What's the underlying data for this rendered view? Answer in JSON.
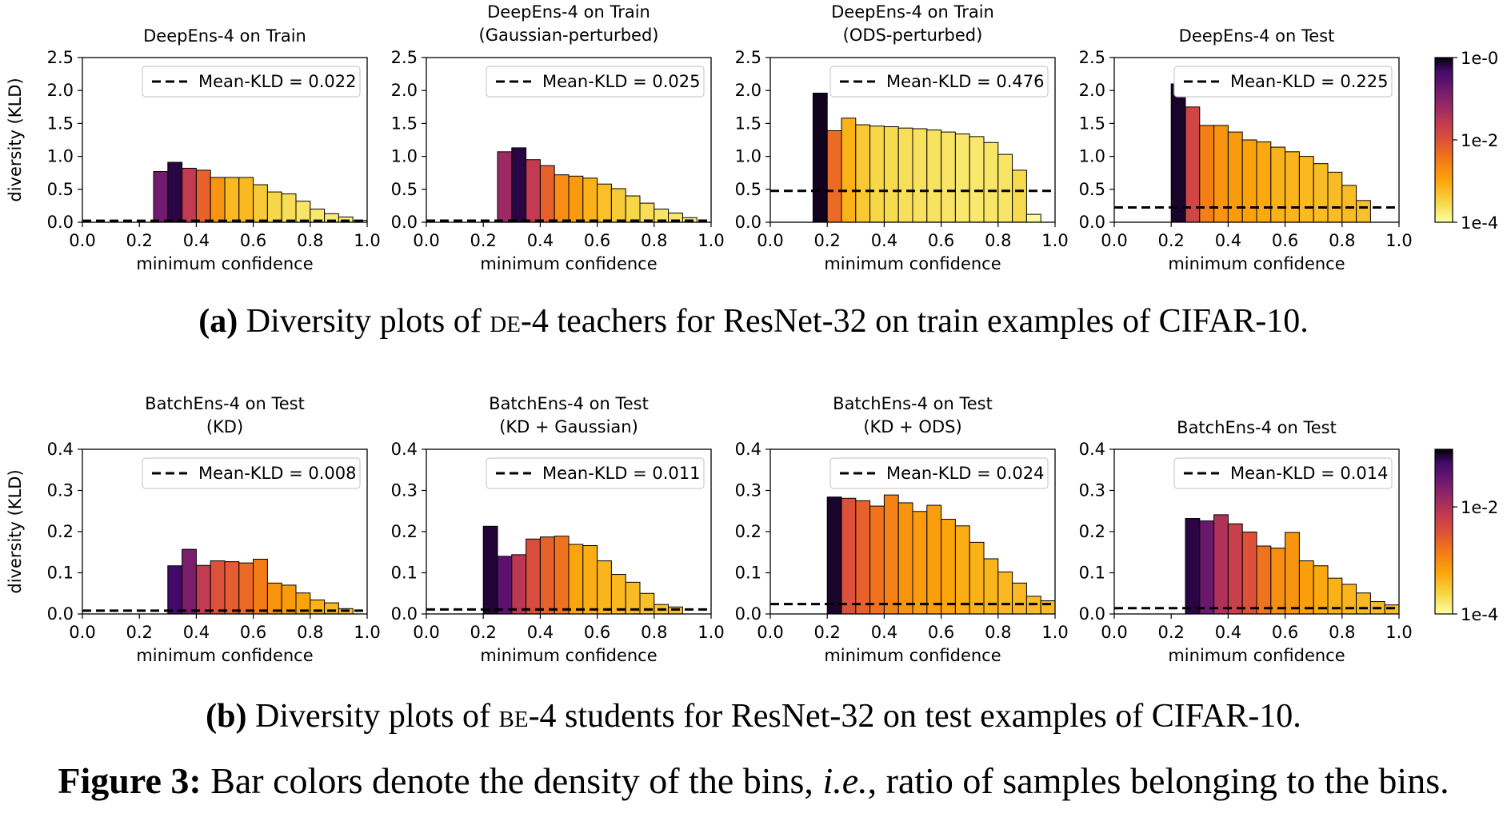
{
  "chart_data": [
    {
      "type": "bar",
      "row": 0,
      "col": 0,
      "title": "DeepEns-4 on Train",
      "xlabel": "minimum confidence",
      "ylabel": "diversity (KLD)",
      "xlim": [
        0.0,
        1.0
      ],
      "ylim": [
        0.0,
        2.5
      ],
      "xticks": [
        "0.0",
        "0.2",
        "0.4",
        "0.6",
        "0.8",
        "1.0"
      ],
      "yticks": [
        "0.0",
        "0.5",
        "1.0",
        "1.5",
        "2.0",
        "2.5"
      ],
      "bin_start": 0.25,
      "bin_width": 0.05,
      "values": [
        0.77,
        0.91,
        0.82,
        0.79,
        0.68,
        0.68,
        0.68,
        0.57,
        0.46,
        0.43,
        0.32,
        0.2,
        0.13,
        0.08,
        0.03
      ],
      "density": [
        0.8,
        0.95,
        0.6,
        0.45,
        0.3,
        0.2,
        0.2,
        0.15,
        0.12,
        0.1,
        0.08,
        0.07,
        0.06,
        0.05,
        0.04
      ],
      "mean_kld": 0.022,
      "legend": "Mean-KLD = 0.022"
    },
    {
      "type": "bar",
      "row": 0,
      "col": 1,
      "title": "DeepEns-4 on Train\n(Gaussian-perturbed)",
      "xlabel": "minimum confidence",
      "ylabel": "",
      "xlim": [
        0.0,
        1.0
      ],
      "ylim": [
        0.0,
        2.5
      ],
      "xticks": [
        "0.0",
        "0.2",
        "0.4",
        "0.6",
        "0.8",
        "1.0"
      ],
      "yticks": [
        "0.0",
        "0.5",
        "1.0",
        "1.5",
        "2.0",
        "2.5"
      ],
      "bin_start": 0.25,
      "bin_width": 0.05,
      "values": [
        1.07,
        1.13,
        0.95,
        0.86,
        0.72,
        0.7,
        0.67,
        0.58,
        0.51,
        0.4,
        0.29,
        0.2,
        0.14,
        0.07
      ],
      "density": [
        0.7,
        0.95,
        0.6,
        0.45,
        0.32,
        0.28,
        0.22,
        0.18,
        0.15,
        0.12,
        0.1,
        0.08,
        0.07,
        0.05
      ],
      "mean_kld": 0.025,
      "legend": "Mean-KLD = 0.025"
    },
    {
      "type": "bar",
      "row": 0,
      "col": 2,
      "title": "DeepEns-4 on Train\n(ODS-perturbed)",
      "xlabel": "minimum confidence",
      "ylabel": "",
      "xlim": [
        0.0,
        1.0
      ],
      "ylim": [
        0.0,
        2.5
      ],
      "xticks": [
        "0.0",
        "0.2",
        "0.4",
        "0.6",
        "0.8",
        "1.0"
      ],
      "yticks": [
        "0.0",
        "0.5",
        "1.0",
        "1.5",
        "2.0",
        "2.5"
      ],
      "bin_start": 0.15,
      "bin_width": 0.05,
      "values": [
        1.96,
        1.39,
        1.58,
        1.48,
        1.46,
        1.45,
        1.43,
        1.42,
        1.4,
        1.37,
        1.34,
        1.3,
        1.21,
        1.03,
        0.79,
        0.12
      ],
      "density": [
        0.98,
        0.42,
        0.22,
        0.16,
        0.12,
        0.11,
        0.095,
        0.09,
        0.085,
        0.08,
        0.07,
        0.07,
        0.075,
        0.08,
        0.11,
        0.01
      ],
      "mean_kld": 0.476,
      "legend": "Mean-KLD = 0.476"
    },
    {
      "type": "bar",
      "row": 0,
      "col": 3,
      "title": "DeepEns-4 on Test",
      "xlabel": "minimum confidence",
      "ylabel": "",
      "xlim": [
        0.0,
        1.0
      ],
      "ylim": [
        0.0,
        2.5
      ],
      "xticks": [
        "0.0",
        "0.2",
        "0.4",
        "0.6",
        "0.8",
        "1.0"
      ],
      "yticks": [
        "0.0",
        "0.5",
        "1.0",
        "1.5",
        "2.0",
        "2.5"
      ],
      "bin_start": 0.2,
      "bin_width": 0.05,
      "values": [
        2.1,
        1.75,
        1.47,
        1.47,
        1.37,
        1.25,
        1.22,
        1.14,
        1.07,
        1.0,
        0.89,
        0.76,
        0.56,
        0.33
      ],
      "density": [
        0.97,
        0.55,
        0.36,
        0.3,
        0.28,
        0.26,
        0.24,
        0.22,
        0.21,
        0.2,
        0.19,
        0.19,
        0.19,
        0.18
      ],
      "mean_kld": 0.225,
      "legend": "Mean-KLD = 0.225"
    },
    {
      "type": "bar",
      "row": 1,
      "col": 0,
      "title": "BatchEns-4 on Test\n(KD)",
      "xlabel": "minimum confidence",
      "ylabel": "diversity (KLD)",
      "xlim": [
        0.0,
        1.0
      ],
      "ylim": [
        0.0,
        0.4
      ],
      "xticks": [
        "0.0",
        "0.2",
        "0.4",
        "0.6",
        "0.8",
        "1.0"
      ],
      "yticks": [
        "0.0",
        "0.1",
        "0.2",
        "0.3",
        "0.4"
      ],
      "bin_start": 0.3,
      "bin_width": 0.05,
      "values": [
        0.117,
        0.157,
        0.118,
        0.129,
        0.127,
        0.124,
        0.133,
        0.075,
        0.07,
        0.051,
        0.034,
        0.027,
        0.013
      ],
      "density": [
        0.92,
        0.78,
        0.6,
        0.5,
        0.46,
        0.42,
        0.37,
        0.3,
        0.28,
        0.25,
        0.22,
        0.2,
        0.18
      ],
      "mean_kld": 0.008,
      "legend": "Mean-KLD = 0.008"
    },
    {
      "type": "bar",
      "row": 1,
      "col": 1,
      "title": "BatchEns-4 on Test\n(KD + Gaussian)",
      "xlabel": "minimum confidence",
      "ylabel": "",
      "xlim": [
        0.0,
        1.0
      ],
      "ylim": [
        0.0,
        0.4
      ],
      "xticks": [
        "0.0",
        "0.2",
        "0.4",
        "0.6",
        "0.8",
        "1.0"
      ],
      "yticks": [
        "0.0",
        "0.1",
        "0.2",
        "0.3",
        "0.4"
      ],
      "bin_start": 0.2,
      "bin_width": 0.05,
      "values": [
        0.213,
        0.14,
        0.144,
        0.182,
        0.187,
        0.189,
        0.169,
        0.166,
        0.129,
        0.096,
        0.077,
        0.05,
        0.023,
        0.017
      ],
      "density": [
        0.96,
        0.86,
        0.62,
        0.52,
        0.45,
        0.4,
        0.25,
        0.23,
        0.21,
        0.2,
        0.19,
        0.18,
        0.17,
        0.18
      ],
      "mean_kld": 0.011,
      "legend": "Mean-KLD = 0.011"
    },
    {
      "type": "bar",
      "row": 1,
      "col": 2,
      "title": "BatchEns-4 on Test\n(KD + ODS)",
      "xlabel": "minimum confidence",
      "ylabel": "",
      "xlim": [
        0.0,
        1.0
      ],
      "ylim": [
        0.0,
        0.4
      ],
      "xticks": [
        "0.0",
        "0.2",
        "0.4",
        "0.6",
        "0.8",
        "1.0"
      ],
      "yticks": [
        "0.0",
        "0.1",
        "0.2",
        "0.3",
        "0.4"
      ],
      "bin_start": 0.2,
      "bin_width": 0.05,
      "values": [
        0.284,
        0.281,
        0.275,
        0.262,
        0.289,
        0.27,
        0.249,
        0.264,
        0.23,
        0.214,
        0.174,
        0.134,
        0.102,
        0.075,
        0.043,
        0.032
      ],
      "density": [
        0.97,
        0.5,
        0.45,
        0.4,
        0.35,
        0.3,
        0.28,
        0.27,
        0.25,
        0.23,
        0.22,
        0.21,
        0.2,
        0.2,
        0.19,
        0.19
      ],
      "mean_kld": 0.024,
      "legend": "Mean-KLD = 0.024"
    },
    {
      "type": "bar",
      "row": 1,
      "col": 3,
      "title": "BatchEns-4 on Test",
      "xlabel": "minimum confidence",
      "ylabel": "",
      "xlim": [
        0.0,
        1.0
      ],
      "ylim": [
        0.0,
        0.4
      ],
      "xticks": [
        "0.0",
        "0.2",
        "0.4",
        "0.6",
        "0.8",
        "1.0"
      ],
      "yticks": [
        "0.0",
        "0.1",
        "0.2",
        "0.3",
        "0.4"
      ],
      "bin_start": 0.25,
      "bin_width": 0.05,
      "values": [
        0.232,
        0.226,
        0.241,
        0.219,
        0.199,
        0.165,
        0.16,
        0.198,
        0.129,
        0.117,
        0.087,
        0.072,
        0.051,
        0.03,
        0.022
      ],
      "density": [
        0.95,
        0.82,
        0.65,
        0.58,
        0.5,
        0.4,
        0.32,
        0.3,
        0.27,
        0.24,
        0.22,
        0.21,
        0.2,
        0.19,
        0.19
      ],
      "mean_kld": 0.014,
      "legend": "Mean-KLD = 0.014"
    }
  ],
  "colorbars": [
    {
      "row": 0,
      "ticks": [
        "1e-0",
        "1e-2",
        "1e-4"
      ]
    },
    {
      "row": 1,
      "ticks": [
        "1e-2",
        "1e-4"
      ]
    }
  ],
  "captions": {
    "a": {
      "label": "(a)",
      "pre": "Diversity plots of ",
      "sc": "de",
      "post": "-4 teachers for ResNet-32 on train examples of CIFAR-10."
    },
    "b": {
      "label": "(b)",
      "pre": "Diversity plots of ",
      "sc": "be",
      "post": "-4 students for ResNet-32 on test examples of CIFAR-10."
    },
    "figure": {
      "label": "Figure 3:",
      "pre": "Bar colors denote the density of the bins, ",
      "ital": "i.e.",
      "post": ", ratio of samples belonging to the bins."
    }
  }
}
